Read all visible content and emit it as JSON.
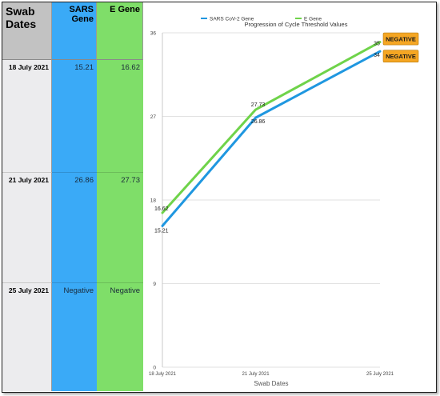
{
  "table": {
    "headers": {
      "date": "Swab Dates",
      "sars": "SARS Gene",
      "e": "E Gene"
    },
    "rows": [
      {
        "date": "18 July 2021",
        "sars": "15.21",
        "e": "16.62"
      },
      {
        "date": "21 July 2021",
        "sars": "26.86",
        "e": "27.73"
      },
      {
        "date": "25 July 2021",
        "sars": "Negative",
        "e": "Negative"
      }
    ]
  },
  "chart_data": {
    "type": "line",
    "title": "Progression of Cycle Threshold Values",
    "xlabel": "Swab Dates",
    "ylabel": "",
    "categories": [
      "18 July 2021",
      "21 July 2021",
      "25 July 2021"
    ],
    "x_days": [
      0,
      3,
      7
    ],
    "ylim": [
      0,
      36
    ],
    "yticks": [
      0,
      9,
      18,
      27,
      36
    ],
    "grid": "horizontal",
    "legend": "top-center",
    "series": [
      {
        "name": "SARS CoV-2 Gene",
        "color": "#1f97e0",
        "values": [
          15.21,
          26.86,
          34
        ],
        "labels": [
          "15.21",
          "26.86",
          "34"
        ]
      },
      {
        "name": "E Gene",
        "color": "#6fd34a",
        "values": [
          16.62,
          27.73,
          35
        ],
        "labels": [
          "16.62",
          "27.73",
          "35"
        ]
      }
    ],
    "annotations": [
      {
        "text": "NEGATIVE",
        "color": "#f5a623",
        "series": 1,
        "point": 2
      },
      {
        "text": "NEGATIVE",
        "color": "#f5a623",
        "series": 0,
        "point": 2
      }
    ]
  }
}
